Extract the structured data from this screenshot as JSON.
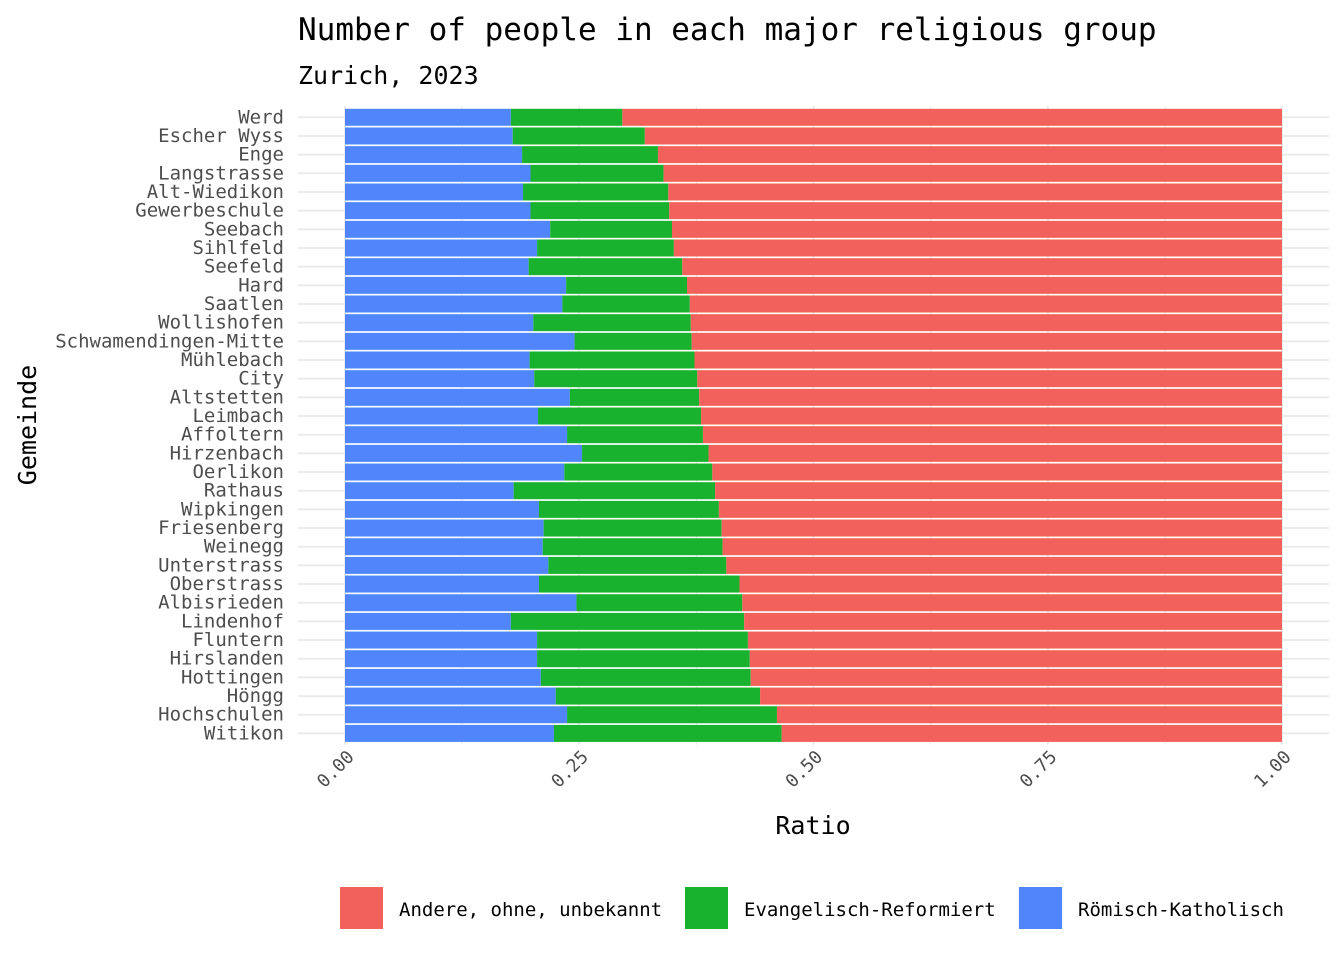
{
  "chart_data": {
    "type": "bar",
    "orientation": "horizontal",
    "stacked": true,
    "title": "Number of people in each major religious group",
    "subtitle": "Zurich, 2023",
    "xlabel": "Ratio",
    "ylabel": "Gemeinde",
    "xlim": [
      0,
      1
    ],
    "xticks": [
      "0.00",
      "0.25",
      "0.50",
      "0.75",
      "1.00"
    ],
    "xtick_values": [
      0,
      0.25,
      0.5,
      0.75,
      1
    ],
    "grid": true,
    "legend_position": "bottom",
    "categories": [
      "Werd",
      "Escher Wyss",
      "Enge",
      "Langstrasse",
      "Alt-Wiedikon",
      "Gewerbeschule",
      "Seebach",
      "Sihlfeld",
      "Seefeld",
      "Hard",
      "Saatlen",
      "Wollishofen",
      "Schwamendingen-Mitte",
      "Mühlebach",
      "City",
      "Altstetten",
      "Leimbach",
      "Affoltern",
      "Hirzenbach",
      "Oerlikon",
      "Rathaus",
      "Wipkingen",
      "Friesenberg",
      "Weinegg",
      "Unterstrass",
      "Oberstrass",
      "Albisrieden",
      "Lindenhof",
      "Fluntern",
      "Hirslanden",
      "Hottingen",
      "Höngg",
      "Hochschulen",
      "Witikon"
    ],
    "series": [
      {
        "name": "Römisch-Katholisch",
        "color": "#5185fc",
        "values": [
          0.177,
          0.179,
          0.189,
          0.198,
          0.19,
          0.198,
          0.219,
          0.205,
          0.196,
          0.236,
          0.232,
          0.201,
          0.245,
          0.197,
          0.202,
          0.24,
          0.206,
          0.237,
          0.253,
          0.234,
          0.18,
          0.207,
          0.212,
          0.211,
          0.217,
          0.207,
          0.247,
          0.177,
          0.205,
          0.205,
          0.209,
          0.225,
          0.237,
          0.223
        ]
      },
      {
        "name": "Evangelisch-Reformiert",
        "color": "#18b22e",
        "values": [
          0.119,
          0.141,
          0.145,
          0.142,
          0.155,
          0.148,
          0.13,
          0.146,
          0.164,
          0.129,
          0.136,
          0.168,
          0.125,
          0.176,
          0.174,
          0.138,
          0.174,
          0.145,
          0.135,
          0.158,
          0.215,
          0.192,
          0.19,
          0.192,
          0.19,
          0.214,
          0.177,
          0.249,
          0.225,
          0.227,
          0.224,
          0.218,
          0.224,
          0.243
        ]
      },
      {
        "name": "Andere, ohne, unbekannt",
        "color": "#f2615c",
        "values": [
          0.704,
          0.68,
          0.666,
          0.66,
          0.655,
          0.654,
          0.651,
          0.649,
          0.64,
          0.635,
          0.632,
          0.631,
          0.63,
          0.627,
          0.624,
          0.622,
          0.62,
          0.618,
          0.612,
          0.608,
          0.605,
          0.601,
          0.598,
          0.597,
          0.593,
          0.579,
          0.576,
          0.574,
          0.57,
          0.568,
          0.567,
          0.557,
          0.539,
          0.534
        ]
      }
    ],
    "legend": [
      {
        "label": "Andere, ohne, unbekannt",
        "color": "#f2615c"
      },
      {
        "label": "Evangelisch-Reformiert",
        "color": "#18b22e"
      },
      {
        "label": "Römisch-Katholisch",
        "color": "#5185fc"
      }
    ]
  }
}
